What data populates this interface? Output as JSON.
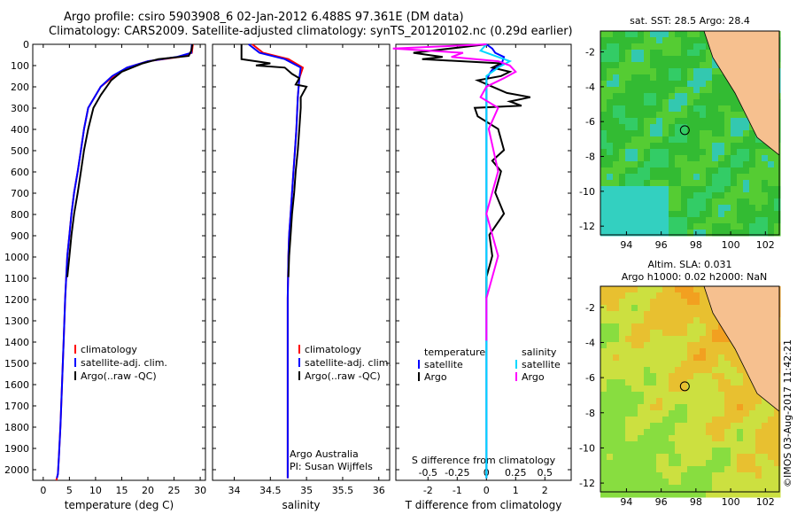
{
  "title_line1": "Argo profile: csiro 5903908_6 02-Jan-2012 6.488S 97.361E (DM data)",
  "title_line2": "Climatology: CARS2009. Satellite-adjusted climatology: synTS_20120102.nc (0.29d earlier)",
  "credit": "©IMOS 03-Aug-2017 11:42:21",
  "colors": {
    "climatology": "#ff0000",
    "satellite": "#0000ff",
    "argo": "#000000",
    "argo_s": "#ff00ff",
    "sat_s": "#00d8ff",
    "land": "#f6c08f"
  },
  "depth_ticks": [
    "0",
    "100",
    "200",
    "300",
    "400",
    "500",
    "600",
    "700",
    "800",
    "900",
    "1000",
    "1100",
    "1200",
    "1300",
    "1400",
    "1500",
    "1600",
    "1700",
    "1800",
    "1900",
    "2000"
  ],
  "chart_data": [
    {
      "type": "line",
      "xlabel": "temperature (deg C)",
      "xticks": [
        "0",
        "5",
        "10",
        "15",
        "20",
        "25",
        "30"
      ],
      "xlim": [
        -2,
        31
      ],
      "ylim": [
        2060,
        0
      ],
      "legend": [
        "climatology",
        "satellite-adj. clim.",
        "Argo(..raw -QC)"
      ],
      "series": [
        {
          "name": "climatology",
          "color": "climatology",
          "x": [
            28.6,
            28.4,
            26.0,
            20.0,
            16.0,
            13.5,
            11.0,
            9.8,
            8.6,
            7.8,
            7.2,
            6.6,
            5.9,
            5.4,
            5.0,
            4.6,
            4.2,
            3.9,
            3.6,
            3.3,
            3.0,
            2.8,
            2.5
          ],
          "y": [
            0,
            40,
            60,
            80,
            110,
            150,
            200,
            250,
            300,
            400,
            500,
            600,
            700,
            800,
            900,
            1000,
            1200,
            1400,
            1600,
            1800,
            1950,
            2030,
            2060
          ]
        },
        {
          "name": "satellite-adj. clim.",
          "color": "satellite",
          "x": [
            28.4,
            28.3,
            25.5,
            20.0,
            16.0,
            13.2,
            11.0,
            9.8,
            8.6,
            7.8,
            7.2,
            6.6,
            5.9,
            5.4,
            5.0,
            4.6,
            4.2,
            3.9,
            3.6,
            3.3,
            3.0,
            2.8,
            2.6
          ],
          "y": [
            0,
            40,
            60,
            80,
            110,
            150,
            200,
            250,
            300,
            400,
            500,
            600,
            700,
            800,
            900,
            1000,
            1200,
            1400,
            1600,
            1800,
            1950,
            2030,
            2050
          ]
        },
        {
          "name": "Argo(..raw -QC)",
          "color": "argo",
          "x": [
            28.5,
            28.3,
            27.8,
            22.0,
            19.0,
            15.0,
            13.0,
            11.0,
            9.6,
            8.6,
            7.8,
            7.2,
            6.6,
            5.9,
            5.4,
            5.0,
            4.6
          ],
          "y": [
            0,
            30,
            55,
            70,
            90,
            130,
            170,
            240,
            300,
            400,
            500,
            600,
            700,
            800,
            900,
            1000,
            1100
          ]
        }
      ]
    },
    {
      "type": "line",
      "xlabel": "salinity",
      "xticks": [
        "34",
        "34.5",
        "35",
        "35.5",
        "36"
      ],
      "xlim": [
        33.7,
        36.15
      ],
      "ylim": [
        2060,
        0
      ],
      "legend": [
        "climatology",
        "satellite-adj. clim.",
        "Argo(..raw -QC)"
      ],
      "annotation": [
        "Argo Australia",
        "PI: Susan Wijffels"
      ],
      "series": [
        {
          "name": "climatology",
          "color": "climatology",
          "x": [
            34.25,
            34.4,
            34.75,
            34.95,
            34.9,
            34.88,
            34.86,
            34.84,
            34.82,
            34.8,
            34.78,
            34.76,
            34.75,
            34.74,
            34.74,
            34.74,
            34.74,
            34.74
          ],
          "y": [
            0,
            40,
            70,
            110,
            160,
            250,
            400,
            500,
            600,
            700,
            800,
            900,
            1000,
            1200,
            1400,
            1600,
            1800,
            2050
          ]
        },
        {
          "name": "satellite-adj. clim.",
          "color": "satellite",
          "x": [
            34.2,
            34.35,
            34.7,
            34.92,
            34.9,
            34.88,
            34.86,
            34.84,
            34.82,
            34.8,
            34.78,
            34.76,
            34.75,
            34.74,
            34.74,
            34.74,
            34.74,
            34.74
          ],
          "y": [
            0,
            40,
            70,
            110,
            160,
            250,
            400,
            500,
            600,
            700,
            800,
            900,
            1000,
            1200,
            1400,
            1600,
            1800,
            2050
          ]
        },
        {
          "name": "Argo(..raw -QC)",
          "color": "argo",
          "x": [
            34.1,
            34.1,
            34.5,
            34.3,
            34.7,
            34.8,
            34.9,
            34.85,
            35.0,
            34.92,
            34.92,
            34.9,
            34.88,
            34.85,
            34.83,
            34.8,
            34.78,
            34.76,
            34.75
          ],
          "y": [
            0,
            70,
            90,
            100,
            110,
            140,
            160,
            190,
            200,
            250,
            300,
            400,
            500,
            600,
            700,
            800,
            900,
            1000,
            1100
          ]
        }
      ]
    },
    {
      "type": "line",
      "xlabel": "T difference from climatology",
      "xticks": [
        "-2",
        "-1",
        "0",
        "1",
        "2"
      ],
      "xlabel_top": "S difference from climatology",
      "xticks_top": [
        "-0.5",
        "-0.25",
        "0",
        "0.25",
        "0.5"
      ],
      "xlim": [
        -3.1,
        2.9
      ],
      "ylim": [
        2060,
        0
      ],
      "legend": [
        "temperature",
        "satellite",
        "Argo",
        "salinity",
        "satellite",
        "Argo"
      ],
      "series": [
        {
          "name": "satellite",
          "color": "satellite",
          "x": [
            0,
            0.2,
            0.3,
            0.6,
            0.5,
            0.2,
            0.1,
            0,
            0,
            0,
            0,
            0,
            0,
            0,
            0
          ],
          "y": [
            0,
            20,
            40,
            60,
            100,
            120,
            140,
            170,
            200,
            300,
            500,
            800,
            1200,
            1600,
            2050
          ]
        },
        {
          "name": "Argo",
          "color": "argo",
          "x": [
            0,
            -2.5,
            -1.5,
            -2.2,
            0.5,
            0.2,
            0.8,
            0.5,
            -0.3,
            0.2,
            0.7,
            1.5,
            0.8,
            1.2,
            -0.4,
            -0.3,
            0.4,
            0.6,
            0.2,
            0.5,
            0.3,
            0.6,
            0.1,
            0.2,
            0,
            0
          ],
          "y": [
            0,
            40,
            60,
            70,
            90,
            110,
            130,
            150,
            170,
            200,
            230,
            250,
            270,
            290,
            300,
            340,
            400,
            500,
            550,
            600,
            700,
            800,
            900,
            1000,
            1100,
            1200
          ]
        },
        {
          "name": "satellite",
          "color": "sat_s",
          "x": [
            0,
            -0.05,
            0.1,
            0.2,
            0.1,
            0,
            0,
            0,
            0,
            0,
            0
          ],
          "y": [
            0,
            30,
            60,
            80,
            110,
            150,
            200,
            400,
            800,
            1400,
            2050
          ]
        },
        {
          "name": "Argo",
          "color": "argo_s",
          "x": [
            0,
            -0.8,
            -0.2,
            -0.3,
            0.1,
            0.2,
            0.25,
            0.15,
            0,
            -0.05,
            0.1,
            0.02,
            0.1,
            0,
            0.1,
            0,
            0
          ],
          "y": [
            0,
            20,
            40,
            60,
            80,
            100,
            130,
            160,
            200,
            250,
            300,
            400,
            600,
            800,
            1000,
            1200,
            1400
          ]
        }
      ]
    },
    {
      "type": "heatmap",
      "title": "sat. SST: 28.5 Argo: 28.4",
      "xticks": [
        "94",
        "96",
        "98",
        "100",
        "102"
      ],
      "yticks": [
        "-2",
        "-4",
        "-6",
        "-8",
        "-10",
        "-12"
      ],
      "xlim": [
        92.5,
        102.8
      ],
      "ylim": [
        -12.5,
        -0.8
      ],
      "marker": [
        97.36,
        -6.49
      ]
    },
    {
      "type": "heatmap",
      "title": "Altim. SLA: 0.031",
      "subtitle": "Argo h1000: 0.02 h2000: NaN",
      "xticks": [
        "94",
        "96",
        "98",
        "100",
        "102"
      ],
      "yticks": [
        "-2",
        "-4",
        "-6",
        "-8",
        "-10",
        "-12"
      ],
      "xlim": [
        92.5,
        102.8
      ],
      "ylim": [
        -12.5,
        -0.8
      ],
      "marker": [
        97.36,
        -6.49
      ]
    }
  ]
}
